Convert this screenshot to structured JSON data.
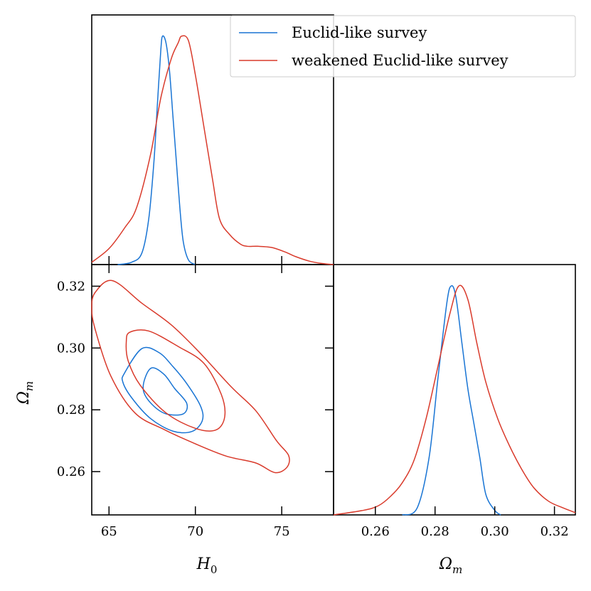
{
  "chart_data": {
    "type": "triangle-plot",
    "colors": {
      "euclid": "#1874d4",
      "weakened": "#d93a2b"
    },
    "legend": {
      "entries": [
        {
          "label": "Euclid-like survey",
          "color": "#1874d4"
        },
        {
          "label": "weakened Euclid-like survey",
          "color": "#d93a2b"
        }
      ],
      "placement": "top-right"
    },
    "parameters": [
      {
        "name": "H0",
        "label_main": "H",
        "label_sub": "0",
        "range": [
          64.0,
          78.0
        ],
        "ticks": [
          65,
          70,
          75
        ],
        "tick_labels": [
          "65",
          "70",
          "75"
        ]
      },
      {
        "name": "Omega_m",
        "label_main": "Ω",
        "label_sub": "m",
        "range": [
          0.246,
          0.327
        ],
        "ticks": [
          0.26,
          0.28,
          0.3,
          0.32
        ],
        "tick_labels": [
          "0.26",
          "0.28",
          "0.30",
          "0.32"
        ]
      }
    ],
    "marginals": {
      "H0": [
        {
          "series": "Euclid-like survey",
          "x": [
            65.5,
            66.3,
            66.9,
            67.3,
            67.6,
            67.8,
            68.0,
            68.1,
            68.3,
            68.5,
            68.7,
            68.9,
            69.1,
            69.3,
            69.6,
            70.0
          ],
          "y": [
            0.0,
            0.01,
            0.05,
            0.2,
            0.45,
            0.7,
            0.94,
            1.0,
            0.97,
            0.85,
            0.65,
            0.45,
            0.25,
            0.1,
            0.02,
            0.0
          ]
        },
        {
          "series": "weakened Euclid-like survey",
          "x": [
            64.0,
            65.0,
            65.9,
            66.6,
            67.4,
            68.0,
            68.6,
            69.0,
            69.2,
            69.6,
            70.0,
            70.5,
            71.0,
            71.4,
            72.0,
            72.6,
            73.0,
            73.6,
            74.4,
            75.2,
            75.8,
            76.6,
            77.3,
            78.0
          ],
          "y": [
            0.01,
            0.07,
            0.16,
            0.25,
            0.48,
            0.73,
            0.9,
            0.97,
            1.0,
            0.98,
            0.83,
            0.6,
            0.37,
            0.2,
            0.13,
            0.09,
            0.08,
            0.08,
            0.075,
            0.055,
            0.035,
            0.015,
            0.005,
            0.0
          ]
        }
      ],
      "Omega_m": [
        {
          "series": "Euclid-like survey",
          "x": [
            0.269,
            0.274,
            0.278,
            0.281,
            0.284,
            0.2855,
            0.287,
            0.289,
            0.291,
            0.293,
            0.295,
            0.297,
            0.3,
            0.302
          ],
          "y": [
            0.0,
            0.03,
            0.25,
            0.6,
            0.93,
            1.0,
            0.95,
            0.75,
            0.55,
            0.4,
            0.25,
            0.09,
            0.02,
            0.0
          ]
        },
        {
          "series": "weakened Euclid-like survey",
          "x": [
            0.246,
            0.256,
            0.261,
            0.265,
            0.269,
            0.273,
            0.277,
            0.281,
            0.285,
            0.288,
            0.291,
            0.294,
            0.297,
            0.301,
            0.305,
            0.309,
            0.313,
            0.318,
            0.323,
            0.327
          ],
          "y": [
            0.0,
            0.02,
            0.04,
            0.08,
            0.14,
            0.24,
            0.42,
            0.65,
            0.88,
            1.0,
            0.94,
            0.75,
            0.58,
            0.42,
            0.3,
            0.2,
            0.12,
            0.06,
            0.03,
            0.01
          ]
        }
      ]
    },
    "contours_2d": [
      {
        "series": "Euclid-like survey",
        "level": "inner",
        "x_param": "H0",
        "y_param": "Omega_m",
        "points": [
          [
            67.1,
            0.2905
          ],
          [
            67.5,
            0.2936
          ],
          [
            68.2,
            0.2914
          ],
          [
            68.8,
            0.2869
          ],
          [
            69.5,
            0.2821
          ],
          [
            69.3,
            0.2787
          ],
          [
            68.3,
            0.2787
          ],
          [
            67.5,
            0.2817
          ],
          [
            67.0,
            0.286
          ]
        ]
      },
      {
        "series": "Euclid-like survey",
        "level": "outer",
        "x_param": "H0",
        "y_param": "Omega_m",
        "points": [
          [
            65.9,
            0.2919
          ],
          [
            66.9,
            0.2998
          ],
          [
            67.9,
            0.2985
          ],
          [
            68.7,
            0.294
          ],
          [
            69.5,
            0.2885
          ],
          [
            70.3,
            0.2812
          ],
          [
            70.4,
            0.2765
          ],
          [
            69.8,
            0.273
          ],
          [
            68.7,
            0.2731
          ],
          [
            67.4,
            0.2772
          ],
          [
            66.3,
            0.284
          ],
          [
            65.8,
            0.289
          ]
        ]
      },
      {
        "series": "weakened Euclid-like survey",
        "level": "inner",
        "x_param": "H0",
        "y_param": "Omega_m",
        "points": [
          [
            66.2,
            0.3051
          ],
          [
            67.3,
            0.3055
          ],
          [
            69.0,
            0.3005
          ],
          [
            70.5,
            0.295
          ],
          [
            71.5,
            0.285
          ],
          [
            71.7,
            0.2778
          ],
          [
            71.2,
            0.2735
          ],
          [
            70.0,
            0.274
          ],
          [
            68.3,
            0.279
          ],
          [
            66.8,
            0.288
          ],
          [
            66.1,
            0.296
          ],
          [
            66.0,
            0.302
          ]
        ]
      },
      {
        "series": "weakened Euclid-like survey",
        "level": "outer",
        "x_param": "H0",
        "y_param": "Omega_m",
        "points": [
          [
            64.2,
            0.318
          ],
          [
            65.2,
            0.3218
          ],
          [
            66.9,
            0.3145
          ],
          [
            68.6,
            0.3075
          ],
          [
            70.2,
            0.2988
          ],
          [
            72.1,
            0.2873
          ],
          [
            73.5,
            0.2797
          ],
          [
            74.7,
            0.27
          ],
          [
            75.4,
            0.2652
          ],
          [
            75.3,
            0.2614
          ],
          [
            74.6,
            0.2597
          ],
          [
            73.5,
            0.2628
          ],
          [
            71.8,
            0.265
          ],
          [
            70.0,
            0.269
          ],
          [
            68.2,
            0.2736
          ],
          [
            66.5,
            0.279
          ],
          [
            65.1,
            0.291
          ],
          [
            64.2,
            0.306
          ],
          [
            64.0,
            0.313
          ]
        ]
      }
    ]
  }
}
